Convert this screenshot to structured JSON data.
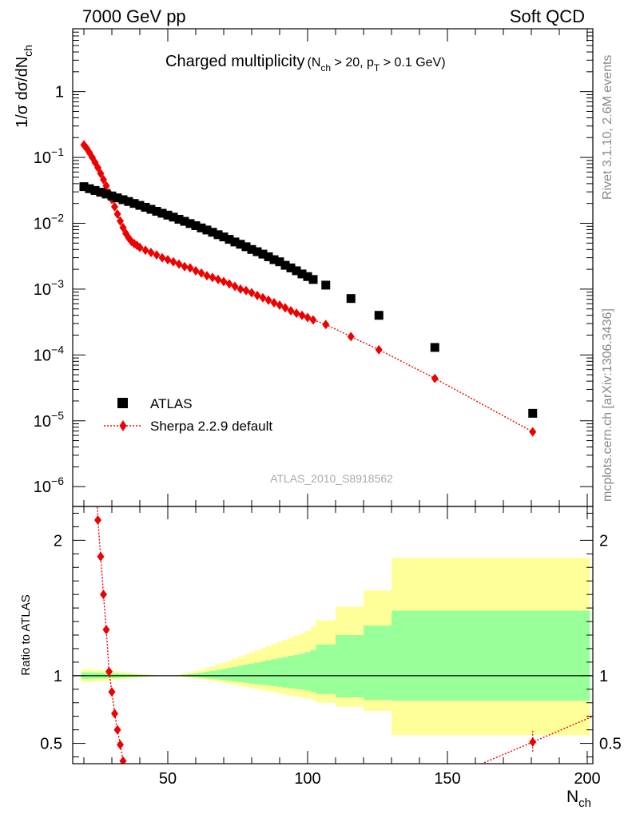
{
  "header": {
    "left": "7000 GeV pp",
    "right": "Soft QCD"
  },
  "side_labels": {
    "top": "Rivet 3.1.10,  2.6M events",
    "bottom": "mcplots.cern.ch [arXiv:1306.3436]"
  },
  "watermark": "ATLAS_2010_S8918562",
  "chart_data": [
    {
      "type": "scatter",
      "panel": "main",
      "title": "Charged multiplicity",
      "subtitle_parts": {
        "n": "N",
        "n_sub": "ch",
        "gt20": " > 20, p",
        "pt_sub": "T",
        "gt01": " > 0.1 GeV)",
        "open": "("
      },
      "ylabel_parts": {
        "a": "1/σ dσ/dN",
        "sub": "ch"
      },
      "xlabel_parts": {
        "a": "N",
        "sub": "ch"
      },
      "xlim": [
        16,
        202
      ],
      "ylim": [
        5e-07,
        9
      ],
      "yscale": "log",
      "y_tick_labels": [
        {
          "value": 1,
          "base": "1",
          "exp": ""
        },
        {
          "value": 0.1,
          "base": "10",
          "exp": "−1"
        },
        {
          "value": 0.01,
          "base": "10",
          "exp": "−2"
        },
        {
          "value": 0.001,
          "base": "10",
          "exp": "−3"
        },
        {
          "value": 0.0001,
          "base": "10",
          "exp": "−4"
        },
        {
          "value": 1e-05,
          "base": "10",
          "exp": "−5"
        },
        {
          "value": 1e-06,
          "base": "10",
          "exp": "−6"
        }
      ],
      "legend": {
        "position": "bottom-left"
      },
      "series": [
        {
          "name": "ATLAS",
          "marker": "square",
          "color": "#000000",
          "x": [
            20,
            22,
            24,
            26,
            28,
            30,
            32,
            34,
            36,
            38,
            40,
            42,
            44,
            46,
            48,
            50,
            52,
            54,
            56,
            58,
            60,
            62,
            64,
            66,
            68,
            70,
            72,
            74,
            76,
            78,
            80,
            82,
            84,
            86,
            88,
            90,
            92,
            94,
            96,
            98,
            100,
            102,
            106.5,
            115.5,
            125.5,
            145.5,
            180.5
          ],
          "y": [
            0.036,
            0.0335,
            0.0315,
            0.0296,
            0.0278,
            0.026,
            0.0243,
            0.0228,
            0.0214,
            0.02,
            0.0187,
            0.0175,
            0.0163,
            0.0152,
            0.0142,
            0.0133,
            0.0124,
            0.0115,
            0.0107,
            0.0099,
            0.0092,
            0.0085,
            0.0079,
            0.0073,
            0.0067,
            0.0062,
            0.0057,
            0.0052,
            0.0048,
            0.0044,
            0.004,
            0.0037,
            0.0034,
            0.0031,
            0.0028,
            0.0026,
            0.0023,
            0.0021,
            0.0019,
            0.0017,
            0.00155,
            0.0014,
            0.00115,
            0.00072,
            0.0004,
            0.00013,
            1.3e-05
          ]
        },
        {
          "name": "Sherpa 2.2.9 default",
          "marker": "diamond",
          "line": "dotted",
          "color": "#ee0000",
          "x": [
            20,
            21,
            22,
            23,
            24,
            25,
            26,
            27,
            28,
            29,
            30,
            31,
            32,
            33,
            34,
            35,
            36,
            37,
            38,
            39,
            40,
            42,
            44,
            46,
            48,
            50,
            52,
            54,
            56,
            58,
            60,
            62,
            64,
            66,
            68,
            70,
            72,
            74,
            76,
            78,
            80,
            82,
            84,
            86,
            88,
            90,
            92,
            94,
            96,
            98,
            100,
            102,
            106.5,
            115.5,
            125.5,
            145.5,
            180.5
          ],
          "y": [
            0.155,
            0.137,
            0.118,
            0.1,
            0.084,
            0.07,
            0.057,
            0.046,
            0.037,
            0.029,
            0.023,
            0.0178,
            0.0138,
            0.0108,
            0.0086,
            0.007,
            0.006,
            0.0053,
            0.0049,
            0.0046,
            0.0043,
            0.0039,
            0.0036,
            0.0033,
            0.003,
            0.0028,
            0.0026,
            0.0024,
            0.0022,
            0.0021,
            0.0019,
            0.00175,
            0.0016,
            0.0015,
            0.0014,
            0.0013,
            0.0012,
            0.0011,
            0.001,
            0.00095,
            0.00088,
            0.0008,
            0.00074,
            0.00068,
            0.00062,
            0.00057,
            0.00052,
            0.00047,
            0.00043,
            0.0004,
            0.00037,
            0.00034,
            0.00029,
            0.00019,
            0.00012,
            4.4e-05,
            6.8e-06
          ]
        }
      ]
    },
    {
      "type": "scatter",
      "panel": "ratio",
      "ylabel": "Ratio to ATLAS",
      "xlim": [
        16,
        202
      ],
      "ylim": [
        0.35,
        2.25
      ],
      "x_ticks": [
        50,
        100,
        150,
        200
      ],
      "y_ticks": [
        0.5,
        1,
        2
      ],
      "reference_line": 1,
      "bands": [
        {
          "name": "outer",
          "color": "#ffff99",
          "edges": [
            19,
            21,
            23,
            25,
            27,
            29,
            31,
            33,
            35,
            37,
            39,
            41,
            43,
            45,
            47,
            49,
            51,
            53,
            55,
            57,
            59,
            61,
            63,
            65,
            67,
            69,
            71,
            73,
            75,
            77,
            79,
            81,
            83,
            85,
            87,
            89,
            91,
            93,
            95,
            97,
            99,
            101,
            103,
            110,
            120,
            130,
            160,
            201
          ],
          "low": [
            0.95,
            0.952,
            0.955,
            0.958,
            0.962,
            0.966,
            0.97,
            0.974,
            0.978,
            0.982,
            0.986,
            0.99,
            0.993,
            0.996,
            0.998,
            1.0,
            0.999,
            0.995,
            0.99,
            0.985,
            0.98,
            0.974,
            0.968,
            0.962,
            0.955,
            0.948,
            0.94,
            0.932,
            0.924,
            0.916,
            0.908,
            0.9,
            0.892,
            0.884,
            0.876,
            0.868,
            0.86,
            0.853,
            0.846,
            0.84,
            0.83,
            0.82,
            0.8,
            0.77,
            0.74,
            0.56,
            0.56
          ],
          "high": [
            1.05,
            1.048,
            1.045,
            1.042,
            1.038,
            1.034,
            1.03,
            1.026,
            1.022,
            1.018,
            1.014,
            1.01,
            1.007,
            1.004,
            1.002,
            1.0,
            1.001,
            1.008,
            1.016,
            1.025,
            1.035,
            1.046,
            1.058,
            1.07,
            1.083,
            1.096,
            1.11,
            1.125,
            1.14,
            1.155,
            1.17,
            1.186,
            1.202,
            1.218,
            1.234,
            1.25,
            1.265,
            1.28,
            1.295,
            1.31,
            1.33,
            1.36,
            1.41,
            1.51,
            1.63,
            1.87,
            1.87
          ]
        },
        {
          "name": "inner",
          "color": "#99ff99",
          "edges": [
            19,
            21,
            23,
            25,
            27,
            29,
            31,
            33,
            35,
            37,
            39,
            41,
            43,
            45,
            47,
            49,
            51,
            53,
            55,
            57,
            59,
            61,
            63,
            65,
            67,
            69,
            71,
            73,
            75,
            77,
            79,
            81,
            83,
            85,
            87,
            89,
            91,
            93,
            95,
            97,
            99,
            101,
            103,
            110,
            120,
            130,
            160,
            201
          ],
          "low": [
            0.975,
            0.976,
            0.977,
            0.978,
            0.98,
            0.982,
            0.984,
            0.986,
            0.988,
            0.99,
            0.992,
            0.994,
            0.996,
            0.998,
            0.999,
            1.0,
            0.999,
            0.997,
            0.994,
            0.991,
            0.988,
            0.984,
            0.98,
            0.976,
            0.972,
            0.967,
            0.962,
            0.957,
            0.952,
            0.947,
            0.942,
            0.937,
            0.932,
            0.927,
            0.922,
            0.917,
            0.912,
            0.907,
            0.902,
            0.897,
            0.89,
            0.88,
            0.865,
            0.84,
            0.82,
            0.815,
            0.815
          ],
          "high": [
            1.025,
            1.024,
            1.023,
            1.022,
            1.02,
            1.018,
            1.016,
            1.014,
            1.012,
            1.01,
            1.008,
            1.006,
            1.004,
            1.002,
            1.001,
            1.0,
            1.001,
            1.004,
            1.008,
            1.012,
            1.017,
            1.023,
            1.029,
            1.036,
            1.043,
            1.05,
            1.058,
            1.066,
            1.074,
            1.082,
            1.09,
            1.098,
            1.106,
            1.114,
            1.122,
            1.13,
            1.138,
            1.146,
            1.154,
            1.162,
            1.175,
            1.19,
            1.23,
            1.3,
            1.37,
            1.48,
            1.48
          ]
        }
      ],
      "ratio_series": {
        "name": "Sherpa 2.2.9 default",
        "color": "#ee0000",
        "x": [
          25,
          26,
          27,
          28,
          29,
          30,
          31,
          32,
          33,
          34,
          180.5
        ],
        "y": [
          2.15,
          1.88,
          1.6,
          1.34,
          1.03,
          0.88,
          0.72,
          0.6,
          0.49,
          0.37,
          0.51
        ]
      }
    }
  ]
}
